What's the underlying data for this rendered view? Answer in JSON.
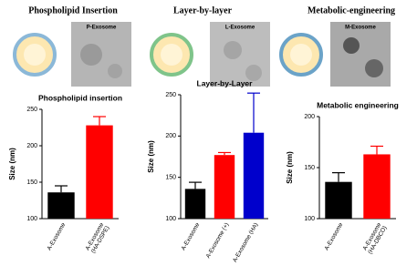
{
  "panels": [
    {
      "title": "Phospholipid Insertion",
      "image_label": "P-Exosome"
    },
    {
      "title": "Layer-by-layer",
      "image_label": "L-Exosome"
    },
    {
      "title": "Metabolic-engineering",
      "image_label": "M-Exosome"
    }
  ],
  "chart_data": [
    {
      "type": "bar",
      "title": "Phospholipid insertion",
      "y_label": "Size (nm)",
      "categories": [
        [
          "A-Exosome"
        ],
        [
          "A-Exosome",
          "(HA-DSPE)"
        ]
      ],
      "values": [
        136,
        228
      ],
      "errors": [
        9,
        12
      ],
      "colors": [
        "#000000",
        "#ff0000"
      ],
      "ylim": [
        100,
        250
      ],
      "yticks": [
        100,
        150,
        200,
        250
      ]
    },
    {
      "type": "bar",
      "title": "Layer-by-Layer",
      "y_label": "Size (nm)",
      "categories": [
        [
          "A-Exosome"
        ],
        [
          "A-Exosome (+)"
        ],
        [
          "A-Exosome (HA)"
        ]
      ],
      "values": [
        136,
        177,
        204
      ],
      "errors": [
        8,
        3,
        48
      ],
      "colors": [
        "#000000",
        "#ff0000",
        "#0000cc"
      ],
      "ylim": [
        100,
        250
      ],
      "yticks": [
        100,
        150,
        200,
        250
      ]
    },
    {
      "type": "bar",
      "title": "Metabolic engineering",
      "y_label": "Size (nm)",
      "categories": [
        [
          "A-Exosome"
        ],
        [
          "A-Exosome",
          "(HA-DBCO)"
        ]
      ],
      "values": [
        136,
        163
      ],
      "errors": [
        9,
        8
      ],
      "colors": [
        "#000000",
        "#ff0000"
      ],
      "ylim": [
        100,
        200
      ],
      "yticks": [
        100,
        150,
        200
      ]
    }
  ]
}
